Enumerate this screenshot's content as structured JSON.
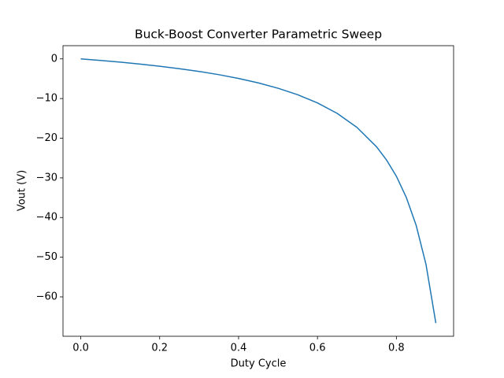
{
  "chart_data": {
    "type": "line",
    "title": "Buck-Boost Converter Parametric Sweep",
    "x_label": "Duty Cycle",
    "y_label": "Vout (V)",
    "x": [
      0,
      0.05,
      0.1,
      0.15,
      0.2,
      0.25,
      0.3,
      0.35,
      0.4,
      0.45,
      0.5,
      0.55,
      0.6,
      0.65,
      0.7,
      0.75,
      0.775,
      0.8,
      0.825,
      0.85,
      0.875,
      0.9
    ],
    "series": [
      {
        "color": "#1f77b4",
        "values": [
          0,
          -0.39,
          -0.82,
          -1.31,
          -1.85,
          -2.47,
          -3.17,
          -3.98,
          -4.93,
          -6.05,
          -7.4,
          -9.04,
          -11.1,
          -13.74,
          -17.27,
          -22.2,
          -25.49,
          -29.6,
          -34.89,
          -41.93,
          -51.8,
          -66.6
        ]
      }
    ],
    "xlim": [
      -0.045,
      0.945
    ],
    "ylim": [
      -69.93,
      3.33
    ],
    "xticks": [
      {
        "value": 0,
        "label": "0.0"
      },
      0.2,
      0.4,
      0.6,
      0.8
    ],
    "yticks": [
      {
        "value": 0,
        "label": "0"
      },
      {
        "value": -10,
        "label": "−10"
      },
      {
        "value": -20,
        "label": "−20"
      },
      {
        "value": -30,
        "label": "−30"
      },
      {
        "value": -40,
        "label": "−40"
      },
      {
        "value": -50,
        "label": "−50"
      },
      {
        "value": -60,
        "label": "−60"
      }
    ],
    "grid": false
  }
}
